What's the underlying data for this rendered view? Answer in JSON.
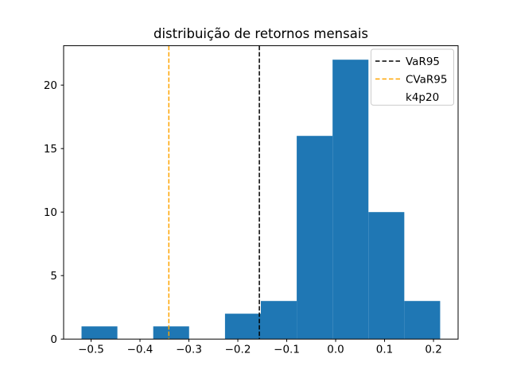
{
  "chart_data": {
    "type": "bar",
    "subtype": "histogram",
    "title": "distribuição de retornos mensais",
    "xlabel": "",
    "ylabel": "",
    "bar_color": "#1f77b4",
    "bin_edges": [
      -0.5195,
      -0.4462,
      -0.3729,
      -0.2996,
      -0.2262,
      -0.1529,
      -0.0796,
      -0.0063,
      0.067,
      0.1403,
      0.2136
    ],
    "counts": [
      1,
      0,
      1,
      0,
      2,
      3,
      16,
      22,
      10,
      3
    ],
    "xlim": [
      -0.5561,
      0.2503
    ],
    "ylim": [
      0,
      23.1
    ],
    "xticks": [
      -0.5,
      -0.4,
      -0.3,
      -0.2,
      -0.1,
      0.0,
      0.1,
      0.2
    ],
    "xtick_labels": [
      "−0.5",
      "−0.4",
      "−0.3",
      "−0.2",
      "−0.1",
      "0.0",
      "0.1",
      "0.2"
    ],
    "yticks": [
      0,
      5,
      10,
      15,
      20
    ],
    "ytick_labels": [
      "0",
      "5",
      "10",
      "15",
      "20"
    ],
    "grid": false,
    "vlines": [
      {
        "label": "VaR95",
        "x": -0.156,
        "color": "#000000",
        "style": "dashed"
      },
      {
        "label": "CVaR95",
        "x": -0.341,
        "color": "#ffa500",
        "style": "dashed"
      }
    ],
    "legend_position": "upper right",
    "legend": [
      {
        "label": "VaR95",
        "color": "#000000",
        "dashed": true
      },
      {
        "label": "CVaR95",
        "color": "#ffa500",
        "dashed": true
      },
      {
        "label": "k4p20",
        "color": null,
        "dashed": false
      }
    ],
    "axis_color": "#000000",
    "legend_edge_color": "#cccccc",
    "background_color": "#ffffff"
  }
}
